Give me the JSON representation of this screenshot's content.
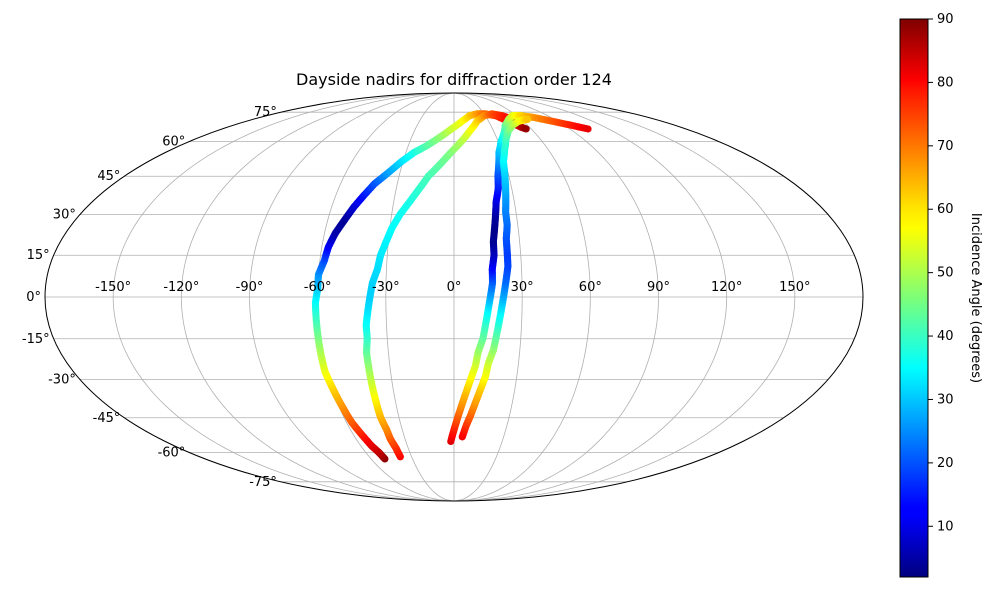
{
  "chart_data": {
    "type": "scatter",
    "projection": "mollweide",
    "title": "Dayside nadirs for diffraction order 124",
    "longitude_ticks": [
      -150,
      -120,
      -90,
      -60,
      -30,
      0,
      30,
      60,
      90,
      120,
      150
    ],
    "longitude_tick_labels": [
      "-150°",
      "-120°",
      "-90°",
      "-60°",
      "-30°",
      "0°",
      "30°",
      "60°",
      "90°",
      "120°",
      "150°"
    ],
    "latitude_ticks": [
      -75,
      -60,
      -45,
      -30,
      -15,
      0,
      15,
      30,
      45,
      60,
      75
    ],
    "latitude_tick_labels": [
      "-75°",
      "-60°",
      "-45°",
      "-30°",
      "-15°",
      "0°",
      "15°",
      "30°",
      "45°",
      "60°",
      "75°"
    ],
    "grid": true,
    "colormap": "jet",
    "colorbar": {
      "label": "Incidence Angle (degrees)",
      "range": [
        2,
        90
      ],
      "ticks": [
        10,
        20,
        30,
        40,
        50,
        60,
        70,
        80,
        90
      ],
      "tick_labels": [
        "10",
        "20",
        "30",
        "40",
        "50",
        "60",
        "70",
        "80",
        "90"
      ],
      "placement": "right"
    },
    "series": [
      {
        "points": [
          [
            -50,
            -63,
            89
          ],
          [
            -51,
            -60,
            85
          ],
          [
            -53,
            -57,
            82
          ],
          [
            -55,
            -52,
            77
          ],
          [
            -57,
            -47,
            72
          ],
          [
            -58,
            -42,
            68
          ],
          [
            -59,
            -37,
            64
          ],
          [
            -60,
            -32,
            60
          ],
          [
            -61,
            -27,
            56
          ],
          [
            -61,
            -22,
            52
          ],
          [
            -61,
            -17,
            48
          ],
          [
            -61,
            -12,
            44
          ],
          [
            -61,
            -7,
            40
          ],
          [
            -61,
            -2,
            36
          ],
          [
            -60,
            3,
            31
          ],
          [
            -60,
            8,
            26
          ],
          [
            -58,
            13,
            20
          ],
          [
            -57,
            18,
            13
          ],
          [
            -55,
            23,
            6
          ],
          [
            -52,
            28,
            4
          ],
          [
            -49,
            33,
            9
          ],
          [
            -46,
            37,
            14
          ],
          [
            -42,
            42,
            20
          ],
          [
            -37,
            46,
            26
          ],
          [
            -31,
            51,
            32
          ],
          [
            -25,
            55,
            37
          ],
          [
            -18,
            58,
            42
          ],
          [
            -10,
            62,
            47
          ],
          [
            -2,
            66,
            52
          ],
          [
            7,
            70,
            56
          ],
          [
            15,
            73,
            61
          ],
          [
            23,
            74,
            65
          ],
          [
            31,
            74,
            70
          ],
          [
            40,
            73,
            74
          ],
          [
            47,
            70,
            79
          ],
          [
            53,
            67,
            84
          ],
          [
            56,
            66,
            88
          ]
        ]
      },
      {
        "points": [
          [
            -38,
            -62,
            79
          ],
          [
            -38,
            -58,
            76
          ],
          [
            -39,
            -54,
            72
          ],
          [
            -39,
            -50,
            68
          ],
          [
            -40,
            -45,
            64
          ],
          [
            -40,
            -40,
            60
          ],
          [
            -40,
            -35,
            56
          ],
          [
            -40,
            -30,
            52
          ],
          [
            -40,
            -25,
            48
          ],
          [
            -40,
            -20,
            44
          ],
          [
            -39,
            -15,
            40
          ],
          [
            -39,
            -10,
            36
          ],
          [
            -38,
            -5,
            33
          ],
          [
            -37,
            0,
            31
          ],
          [
            -36,
            5,
            31
          ],
          [
            -34,
            10,
            32
          ],
          [
            -33,
            15,
            33
          ],
          [
            -31,
            20,
            34
          ],
          [
            -29,
            25,
            35
          ],
          [
            -26,
            30,
            36
          ],
          [
            -22,
            35,
            37
          ],
          [
            -18,
            40,
            39
          ],
          [
            -14,
            45,
            41
          ],
          [
            -8,
            50,
            43
          ],
          [
            -2,
            55,
            46
          ],
          [
            5,
            60,
            50
          ],
          [
            12,
            65,
            55
          ],
          [
            20,
            70,
            60
          ],
          [
            29,
            73,
            66
          ],
          [
            38,
            74,
            72
          ],
          [
            46,
            73,
            76
          ],
          [
            53,
            71,
            80
          ]
        ]
      },
      {
        "points": [
          [
            -2,
            -55,
            82
          ],
          [
            0,
            -50,
            77
          ],
          [
            2,
            -45,
            72
          ],
          [
            4,
            -40,
            67
          ],
          [
            6,
            -35,
            63
          ],
          [
            8,
            -30,
            58
          ],
          [
            10,
            -25,
            54
          ],
          [
            11,
            -20,
            49
          ],
          [
            13,
            -15,
            44
          ],
          [
            14,
            -10,
            40
          ],
          [
            15,
            -5,
            35
          ],
          [
            16,
            0,
            28
          ],
          [
            17,
            5,
            22
          ],
          [
            17,
            10,
            14
          ],
          [
            18,
            15,
            8
          ],
          [
            18,
            20,
            4
          ],
          [
            19,
            25,
            3
          ],
          [
            20,
            30,
            5
          ],
          [
            21,
            35,
            10
          ],
          [
            23,
            40,
            15
          ],
          [
            24,
            45,
            19
          ],
          [
            26,
            50,
            24
          ],
          [
            28,
            55,
            29
          ],
          [
            32,
            60,
            33
          ],
          [
            37,
            64,
            38
          ],
          [
            42,
            68,
            43
          ],
          [
            49,
            71,
            49
          ],
          [
            56,
            73,
            54
          ],
          [
            64,
            73,
            60
          ],
          [
            74,
            72,
            66
          ],
          [
            85,
            70,
            71
          ],
          [
            95,
            68,
            76
          ],
          [
            104,
            66,
            81
          ]
        ]
      },
      {
        "points": [
          [
            5,
            -53,
            80
          ],
          [
            7,
            -48,
            75
          ],
          [
            9,
            -44,
            71
          ],
          [
            11,
            -39,
            66
          ],
          [
            13,
            -34,
            62
          ],
          [
            15,
            -29,
            57
          ],
          [
            16,
            -24,
            53
          ],
          [
            18,
            -19,
            48
          ],
          [
            19,
            -14,
            43
          ],
          [
            20,
            -9,
            38
          ],
          [
            21,
            -4,
            33
          ],
          [
            22,
            1,
            27
          ],
          [
            23,
            6,
            22
          ],
          [
            24,
            11,
            19
          ],
          [
            24,
            16,
            18
          ],
          [
            24,
            21,
            20
          ],
          [
            25,
            26,
            22
          ],
          [
            25,
            31,
            24
          ],
          [
            26,
            36,
            26
          ],
          [
            27,
            41,
            29
          ],
          [
            28,
            46,
            31
          ],
          [
            29,
            51,
            34
          ],
          [
            32,
            56,
            37
          ],
          [
            36,
            61,
            40
          ],
          [
            41,
            65,
            44
          ],
          [
            48,
            68,
            49
          ],
          [
            56,
            70,
            55
          ],
          [
            66,
            71,
            62
          ]
        ]
      }
    ]
  }
}
